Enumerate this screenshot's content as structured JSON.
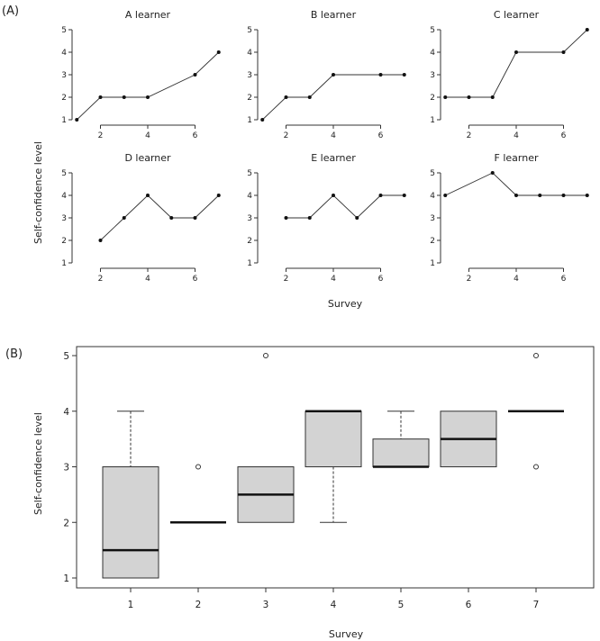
{
  "figure": {
    "label_a": "(A)",
    "label_b": "(B)"
  },
  "chart_data": [
    {
      "type": "line",
      "title": "A learner",
      "xlabel": "Survey",
      "ylabel": "Self-confidence level",
      "x_ticks": [
        2,
        4,
        6
      ],
      "y_ticks": [
        1,
        2,
        3,
        4,
        5
      ],
      "xlim": [
        0.8,
        7.2
      ],
      "ylim": [
        0.8,
        5.2
      ],
      "points": [
        [
          1,
          1
        ],
        [
          2,
          2
        ],
        [
          3,
          2
        ],
        [
          4,
          2
        ],
        [
          6,
          3
        ],
        [
          7,
          4
        ]
      ]
    },
    {
      "type": "line",
      "title": "B learner",
      "xlabel": "Survey",
      "ylabel": "Self-confidence level",
      "x_ticks": [
        2,
        4,
        6
      ],
      "y_ticks": [
        1,
        2,
        3,
        4,
        5
      ],
      "xlim": [
        0.8,
        7.2
      ],
      "ylim": [
        0.8,
        5.2
      ],
      "points": [
        [
          1,
          1
        ],
        [
          2,
          2
        ],
        [
          3,
          2
        ],
        [
          4,
          3
        ],
        [
          6,
          3
        ],
        [
          7,
          3
        ]
      ]
    },
    {
      "type": "line",
      "title": "C learner",
      "xlabel": "Survey",
      "ylabel": "Self-confidence level",
      "x_ticks": [
        2,
        4,
        6
      ],
      "y_ticks": [
        1,
        2,
        3,
        4,
        5
      ],
      "xlim": [
        0.8,
        7.2
      ],
      "ylim": [
        0.8,
        5.2
      ],
      "points": [
        [
          1,
          2
        ],
        [
          2,
          2
        ],
        [
          3,
          2
        ],
        [
          4,
          4
        ],
        [
          6,
          4
        ],
        [
          7,
          5
        ]
      ]
    },
    {
      "type": "line",
      "title": "D learner",
      "xlabel": "Survey",
      "ylabel": "Self-confidence level",
      "x_ticks": [
        2,
        4,
        6
      ],
      "y_ticks": [
        1,
        2,
        3,
        4,
        5
      ],
      "xlim": [
        0.8,
        7.2
      ],
      "ylim": [
        0.8,
        5.2
      ],
      "points": [
        [
          2,
          2
        ],
        [
          3,
          3
        ],
        [
          4,
          4
        ],
        [
          5,
          3
        ],
        [
          6,
          3
        ],
        [
          7,
          4
        ]
      ]
    },
    {
      "type": "line",
      "title": "E learner",
      "xlabel": "Survey",
      "ylabel": "Self-confidence level",
      "x_ticks": [
        2,
        4,
        6
      ],
      "y_ticks": [
        1,
        2,
        3,
        4,
        5
      ],
      "xlim": [
        0.8,
        7.2
      ],
      "ylim": [
        0.8,
        5.2
      ],
      "points": [
        [
          2,
          3
        ],
        [
          3,
          3
        ],
        [
          4,
          4
        ],
        [
          5,
          3
        ],
        [
          6,
          4
        ],
        [
          7,
          4
        ]
      ]
    },
    {
      "type": "line",
      "title": "F learner",
      "xlabel": "Survey",
      "ylabel": "Self-confidence level",
      "x_ticks": [
        2,
        4,
        6
      ],
      "y_ticks": [
        1,
        2,
        3,
        4,
        5
      ],
      "xlim": [
        0.8,
        7.2
      ],
      "ylim": [
        0.8,
        5.2
      ],
      "points": [
        [
          1,
          4
        ],
        [
          3,
          5
        ],
        [
          4,
          4
        ],
        [
          5,
          4
        ],
        [
          6,
          4
        ],
        [
          7,
          4
        ]
      ]
    },
    {
      "type": "box",
      "title": "",
      "xlabel": "Survey",
      "ylabel": "Self-confidence level",
      "categories": [
        "1",
        "2",
        "3",
        "4",
        "5",
        "6",
        "7"
      ],
      "y_ticks": [
        1,
        2,
        3,
        4,
        5
      ],
      "ylim": [
        0.8,
        5.2
      ],
      "boxes": [
        {
          "category": "1",
          "min": 1,
          "q1": 1,
          "median": 1.5,
          "q3": 3,
          "max": 4,
          "outliers": []
        },
        {
          "category": "2",
          "min": 2,
          "q1": 2,
          "median": 2,
          "q3": 2,
          "max": 2,
          "outliers": [
            3
          ]
        },
        {
          "category": "3",
          "min": 2,
          "q1": 2,
          "median": 2.5,
          "q3": 3,
          "max": 3,
          "outliers": [
            5
          ]
        },
        {
          "category": "4",
          "min": 2,
          "q1": 3,
          "median": 4,
          "q3": 4,
          "max": 4,
          "outliers": []
        },
        {
          "category": "5",
          "min": 3,
          "q1": 3,
          "median": 3,
          "q3": 3.5,
          "max": 4,
          "outliers": []
        },
        {
          "category": "6",
          "min": 3,
          "q1": 3,
          "median": 3.5,
          "q3": 4,
          "max": 4,
          "outliers": []
        },
        {
          "category": "7",
          "min": 4,
          "q1": 4,
          "median": 4,
          "q3": 4,
          "max": 4,
          "outliers": [
            3,
            5
          ]
        }
      ]
    }
  ]
}
